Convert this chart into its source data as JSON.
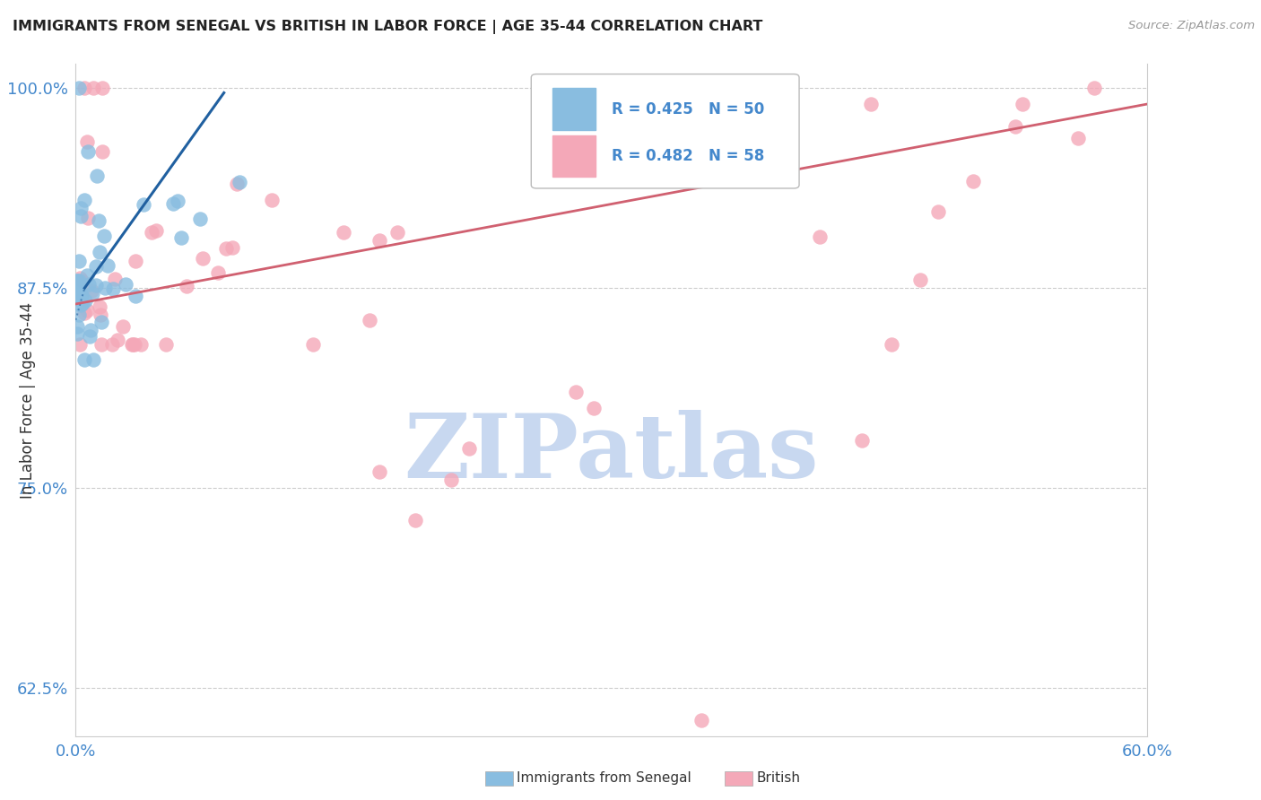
{
  "title": "IMMIGRANTS FROM SENEGAL VS BRITISH IN LABOR FORCE | AGE 35-44 CORRELATION CHART",
  "source": "Source: ZipAtlas.com",
  "ylabel": "In Labor Force | Age 35-44",
  "xlim": [
    0.0,
    0.6
  ],
  "ylim": [
    0.595,
    1.015
  ],
  "xticks": [
    0.0,
    0.1,
    0.2,
    0.3,
    0.4,
    0.5,
    0.6
  ],
  "xticklabels": [
    "0.0%",
    "",
    "",
    "",
    "",
    "",
    "60.0%"
  ],
  "yticks": [
    0.625,
    0.75,
    0.875,
    1.0
  ],
  "yticklabels": [
    "62.5%",
    "75.0%",
    "87.5%",
    "100.0%"
  ],
  "senegal_color": "#89bde0",
  "british_color": "#f4a8b8",
  "senegal_trend_color": "#2060a0",
  "british_trend_color": "#d06070",
  "watermark": "ZIPatlas",
  "watermark_color": "#c8d8f0",
  "title_color": "#222222",
  "axis_label_color": "#4488cc",
  "grid_color": "#cccccc",
  "background_color": "#ffffff",
  "senegal_R": 0.425,
  "senegal_N": 50,
  "british_R": 0.482,
  "british_N": 58
}
